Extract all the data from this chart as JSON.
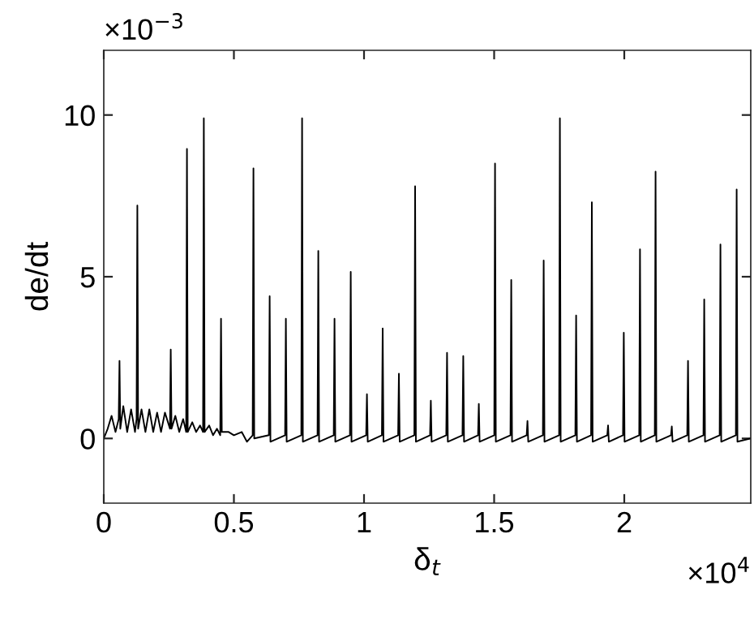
{
  "chart_data": {
    "type": "line",
    "xlabel": "δ$_{t}$",
    "ylabel": "de/dt",
    "annotations": [
      "×10$^{−3}$",
      "×10$^{4}$"
    ],
    "xlim": [
      0,
      2.486
    ],
    "ylim": [
      -2,
      12
    ],
    "xticks": [
      0,
      0.5,
      1,
      1.5,
      2
    ],
    "yticks": [
      0,
      5,
      10
    ],
    "grid": false,
    "legend": false,
    "marker": "none",
    "line_style": "solid",
    "series": [
      {
        "color": "#000000",
        "x": [
          0,
          0.015,
          0.03,
          0.045,
          0.0574,
          0.0604,
          0.0634,
          0.075,
          0.09,
          0.105,
          0.12,
          0.126,
          0.129,
          0.132,
          0.145,
          0.16,
          0.175,
          0.19,
          0.205,
          0.22,
          0.235,
          0.2543,
          0.2573,
          0.2603,
          0.275,
          0.29,
          0.305,
          0.3166,
          0.3196,
          0.3226,
          0.34,
          0.355,
          0.37,
          0.3814,
          0.3844,
          0.3874,
          0.405,
          0.42,
          0.435,
          0.4475,
          0.4505,
          0.4535,
          0.48,
          0.5,
          0.53,
          0.55,
          0.5721,
          0.5751,
          0.5781,
          0.6344,
          0.6374,
          0.6404,
          0.6967,
          0.6997,
          0.7027,
          0.759,
          0.762,
          0.765,
          0.8213,
          0.8243,
          0.8273,
          0.8836,
          0.8866,
          0.8896,
          0.9459,
          0.9489,
          0.9519,
          1.0082,
          1.0112,
          1.0142,
          1.0687,
          1.0717,
          1.0747,
          1.131,
          1.134,
          1.137,
          1.1933,
          1.1963,
          1.1993,
          1.2537,
          1.2567,
          1.2597,
          1.316,
          1.319,
          1.322,
          1.3783,
          1.3813,
          1.3843,
          1.4381,
          1.4411,
          1.4441,
          1.5004,
          1.5034,
          1.5064,
          1.5627,
          1.5657,
          1.5687,
          1.625,
          1.628,
          1.631,
          1.6873,
          1.6903,
          1.6933,
          1.7496,
          1.7526,
          1.7556,
          1.812,
          1.815,
          1.818,
          1.8724,
          1.8754,
          1.8784,
          1.9347,
          1.9377,
          1.9407,
          1.9951,
          1.9981,
          2.0011,
          2.0574,
          2.0604,
          2.0634,
          2.1172,
          2.1202,
          2.1232,
          2.1796,
          2.1826,
          2.1856,
          2.2419,
          2.2449,
          2.2479,
          2.3042,
          2.3072,
          2.3102,
          2.3665,
          2.3695,
          2.3725,
          2.4288,
          2.4318,
          2.4348,
          2.486
        ],
        "values": [
          0,
          0.3,
          0.7,
          0.2,
          0.6,
          2.4,
          0.3,
          1,
          0.2,
          0.9,
          0.2,
          0.6,
          7.2,
          0.3,
          0.9,
          0.2,
          0.9,
          0.2,
          0.8,
          0.2,
          0.8,
          0.3,
          2.75,
          0.3,
          0.7,
          0.2,
          0.6,
          0.2,
          8.95,
          0.2,
          0.5,
          0.2,
          0.4,
          0.2,
          9.9,
          0.2,
          0.4,
          0.1,
          0.3,
          0.1,
          3.7,
          0.2,
          0.2,
          0.1,
          0.2,
          -0.1,
          0.1,
          8.35,
          0,
          0.1,
          4.4,
          -0.1,
          0.1,
          3.7,
          -0.1,
          0.1,
          9.9,
          -0.1,
          0.1,
          5.8,
          -0.1,
          0.1,
          3.7,
          -0.1,
          0.1,
          5.15,
          -0.1,
          0.1,
          1.37,
          -0.1,
          0.1,
          3.4,
          -0.1,
          0.1,
          2,
          -0.1,
          0.1,
          7.8,
          -0.1,
          0.1,
          1.17,
          -0.1,
          0.1,
          2.65,
          -0.1,
          0.1,
          2.55,
          -0.1,
          0.1,
          1.07,
          -0.1,
          0.1,
          8.5,
          -0.1,
          0.1,
          4.9,
          -0.1,
          0.1,
          0.54,
          -0.1,
          0.1,
          5.5,
          -0.1,
          0.1,
          9.9,
          -0.1,
          0.1,
          3.8,
          -0.1,
          0.1,
          7.3,
          -0.1,
          0.1,
          0.4,
          -0.1,
          0.1,
          3.27,
          -0.1,
          0.1,
          5.85,
          -0.1,
          0.1,
          8.25,
          -0.1,
          0.1,
          0.37,
          -0.1,
          0.1,
          2.4,
          -0.1,
          0.1,
          4.3,
          -0.1,
          0.1,
          6,
          -0.1,
          0.1,
          7.7,
          -0.1,
          0
        ]
      }
    ]
  }
}
